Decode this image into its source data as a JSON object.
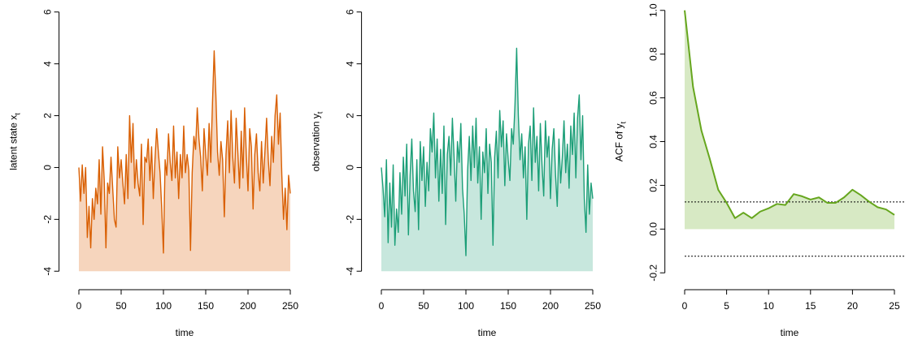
{
  "chart_data": [
    {
      "type": "area-line",
      "ylabel": "latent state x",
      "ylabel_subscript": "t",
      "xlabel": "time",
      "x": [
        0,
        2,
        4,
        6,
        8,
        10,
        12,
        14,
        16,
        18,
        20,
        22,
        24,
        26,
        28,
        30,
        32,
        34,
        36,
        38,
        40,
        42,
        44,
        46,
        48,
        50,
        52,
        54,
        56,
        58,
        60,
        62,
        64,
        66,
        68,
        70,
        72,
        74,
        76,
        78,
        80,
        82,
        84,
        86,
        88,
        90,
        92,
        94,
        96,
        98,
        100,
        102,
        104,
        106,
        108,
        110,
        112,
        114,
        116,
        118,
        120,
        122,
        124,
        126,
        128,
        130,
        132,
        134,
        136,
        138,
        140,
        142,
        144,
        146,
        148,
        150,
        152,
        154,
        156,
        158,
        160,
        162,
        164,
        166,
        168,
        170,
        172,
        174,
        176,
        178,
        180,
        182,
        184,
        186,
        188,
        190,
        192,
        194,
        196,
        198,
        200,
        202,
        204,
        206,
        208,
        210,
        212,
        214,
        216,
        218,
        220,
        222,
        224,
        226,
        228,
        230,
        232,
        234,
        236,
        238,
        240,
        242,
        244,
        246,
        248,
        250
      ],
      "values": [
        0,
        -1.3,
        0.1,
        -1.0,
        0.0,
        -2.7,
        -1.5,
        -3.1,
        -1.2,
        -2.0,
        -0.8,
        -1.4,
        0.3,
        -1.8,
        0.8,
        -0.5,
        -3.1,
        -0.6,
        -1.0,
        0.4,
        -0.8,
        -2.0,
        -2.3,
        0.8,
        -0.4,
        0.3,
        -0.6,
        -1.4,
        0.5,
        -1.2,
        2.0,
        0.2,
        1.7,
        -0.8,
        0.3,
        -0.6,
        -1.1,
        0.9,
        -2.2,
        0.4,
        0.2,
        1.1,
        -0.5,
        0.8,
        -1.2,
        0.3,
        1.5,
        0.6,
        -0.2,
        -1.6,
        -3.3,
        0.3,
        -0.3,
        1.3,
        0.2,
        -0.5,
        1.6,
        -0.4,
        0.6,
        -1.2,
        0.5,
        -0.4,
        1.6,
        -0.2,
        0.5,
        -0.1,
        -3.2,
        -0.2,
        1.2,
        0.7,
        2.3,
        1.1,
        0.4,
        -0.9,
        1.5,
        0.5,
        -0.3,
        1.7,
        0.2,
        2.5,
        4.5,
        2.8,
        0.6,
        -0.3,
        1.0,
        0.3,
        -1.9,
        0.5,
        1.8,
        -0.2,
        2.2,
        0.4,
        -0.6,
        1.9,
        0.6,
        -0.8,
        1.4,
        -0.4,
        2.3,
        0.5,
        -0.9,
        1.5,
        0.8,
        -1.6,
        0.5,
        1.3,
        -0.2,
        -0.9,
        1.0,
        -0.6,
        0.6,
        1.9,
        0.3,
        -0.7,
        1.2,
        0.2,
        2.0,
        2.8,
        0.9,
        2.1,
        -0.3,
        -2.0,
        -0.8,
        -2.4,
        -0.3,
        -1.0
      ],
      "color": "#d95f02",
      "fill_color": "#f6d5bd",
      "area_base": -4,
      "xlim": [
        -10,
        260
      ],
      "xticks": [
        0,
        50,
        100,
        150,
        200,
        250
      ],
      "ylim": [
        -4.4,
        6.4
      ],
      "yticks": [
        -4,
        -2,
        0,
        2,
        4,
        6
      ]
    },
    {
      "type": "area-line",
      "ylabel": "observation y",
      "ylabel_subscript": "t",
      "xlabel": "time",
      "x": [
        0,
        2,
        4,
        6,
        8,
        10,
        12,
        14,
        16,
        18,
        20,
        22,
        24,
        26,
        28,
        30,
        32,
        34,
        36,
        38,
        40,
        42,
        44,
        46,
        48,
        50,
        52,
        54,
        56,
        58,
        60,
        62,
        64,
        66,
        68,
        70,
        72,
        74,
        76,
        78,
        80,
        82,
        84,
        86,
        88,
        90,
        92,
        94,
        96,
        98,
        100,
        102,
        104,
        106,
        108,
        110,
        112,
        114,
        116,
        118,
        120,
        122,
        124,
        126,
        128,
        130,
        132,
        134,
        136,
        138,
        140,
        142,
        144,
        146,
        148,
        150,
        152,
        154,
        156,
        158,
        160,
        162,
        164,
        166,
        168,
        170,
        172,
        174,
        176,
        178,
        180,
        182,
        184,
        186,
        188,
        190,
        192,
        194,
        196,
        198,
        200,
        202,
        204,
        206,
        208,
        210,
        212,
        214,
        216,
        218,
        220,
        222,
        224,
        226,
        228,
        230,
        232,
        234,
        236,
        238,
        240,
        242,
        244,
        246,
        248,
        250
      ],
      "values": [
        0,
        -0.8,
        -1.9,
        0.3,
        -2.9,
        -0.6,
        -2.3,
        0.1,
        -3.0,
        -1.6,
        -2.5,
        -0.2,
        -1.8,
        0.4,
        -1.1,
        0.9,
        -2.6,
        -0.3,
        1.1,
        -0.9,
        -1.7,
        0.3,
        -2.4,
        1.0,
        -0.5,
        0.8,
        -1.5,
        0.2,
        -0.9,
        1.5,
        0.6,
        2.1,
        -0.4,
        1.1,
        -1.3,
        0.7,
        -1.0,
        1.6,
        -2.2,
        0.5,
        1.2,
        -0.3,
        1.9,
        0.4,
        -1.3,
        1.0,
        0.2,
        1.7,
        -0.8,
        -1.8,
        -3.4,
        -0.1,
        1.2,
        -0.5,
        1.6,
        0.0,
        1.9,
        -0.6,
        0.8,
        -2.0,
        0.6,
        -0.2,
        1.5,
        -1.0,
        0.9,
        0.2,
        -3.0,
        0.4,
        1.4,
        -0.4,
        2.2,
        0.8,
        1.8,
        -0.7,
        1.3,
        0.3,
        -0.5,
        1.5,
        0.9,
        2.4,
        4.6,
        2.0,
        0.3,
        1.3,
        -0.4,
        0.8,
        -2.0,
        0.9,
        1.6,
        -0.5,
        2.3,
        0.2,
        1.2,
        -0.9,
        1.7,
        0.1,
        -1.1,
        1.8,
        0.4,
        1.2,
        -1.2,
        0.7,
        1.5,
        -0.3,
        -1.5,
        1.1,
        -0.6,
        0.4,
        1.8,
        -0.2,
        0.9,
        -0.8,
        1.6,
        0.5,
        2.1,
        -0.4,
        1.9,
        2.8,
        0.3,
        2.0,
        -1.2,
        -2.5,
        0.1,
        -1.8,
        -0.6,
        -1.2
      ],
      "color": "#1b9e77",
      "fill_color": "#c7e7dd",
      "area_base": -4,
      "xlim": [
        -10,
        260
      ],
      "xticks": [
        0,
        50,
        100,
        150,
        200,
        250
      ],
      "ylim": [
        -4.4,
        6.4
      ],
      "yticks": [
        -4,
        -2,
        0,
        2,
        4,
        6
      ]
    },
    {
      "type": "area-line",
      "ylabel": "ACF of y",
      "ylabel_subscript": "t",
      "xlabel": "time",
      "x": [
        0,
        1,
        2,
        3,
        4,
        5,
        6,
        7,
        8,
        9,
        10,
        11,
        12,
        13,
        14,
        15,
        16,
        17,
        18,
        19,
        20,
        21,
        22,
        23,
        24,
        25
      ],
      "values": [
        1.0,
        0.65,
        0.45,
        0.32,
        0.18,
        0.12,
        0.05,
        0.075,
        0.05,
        0.08,
        0.095,
        0.115,
        0.11,
        0.16,
        0.15,
        0.135,
        0.145,
        0.12,
        0.12,
        0.145,
        0.18,
        0.155,
        0.125,
        0.1,
        0.09,
        0.065
      ],
      "color": "#66a61e",
      "fill_color": "#d7e9c4",
      "area_base": 0,
      "hlines": [
        0.124,
        -0.124
      ],
      "xlim": [
        -1,
        26
      ],
      "xticks": [
        0,
        5,
        10,
        15,
        20,
        25
      ],
      "ylim": [
        -0.24,
        1.04
      ],
      "yticks": [
        -0.2,
        {
          "value": 0,
          "label": "0.0"
        },
        0.2,
        0.4,
        0.6,
        0.8,
        {
          "value": 1,
          "label": "1.0"
        }
      ]
    }
  ]
}
